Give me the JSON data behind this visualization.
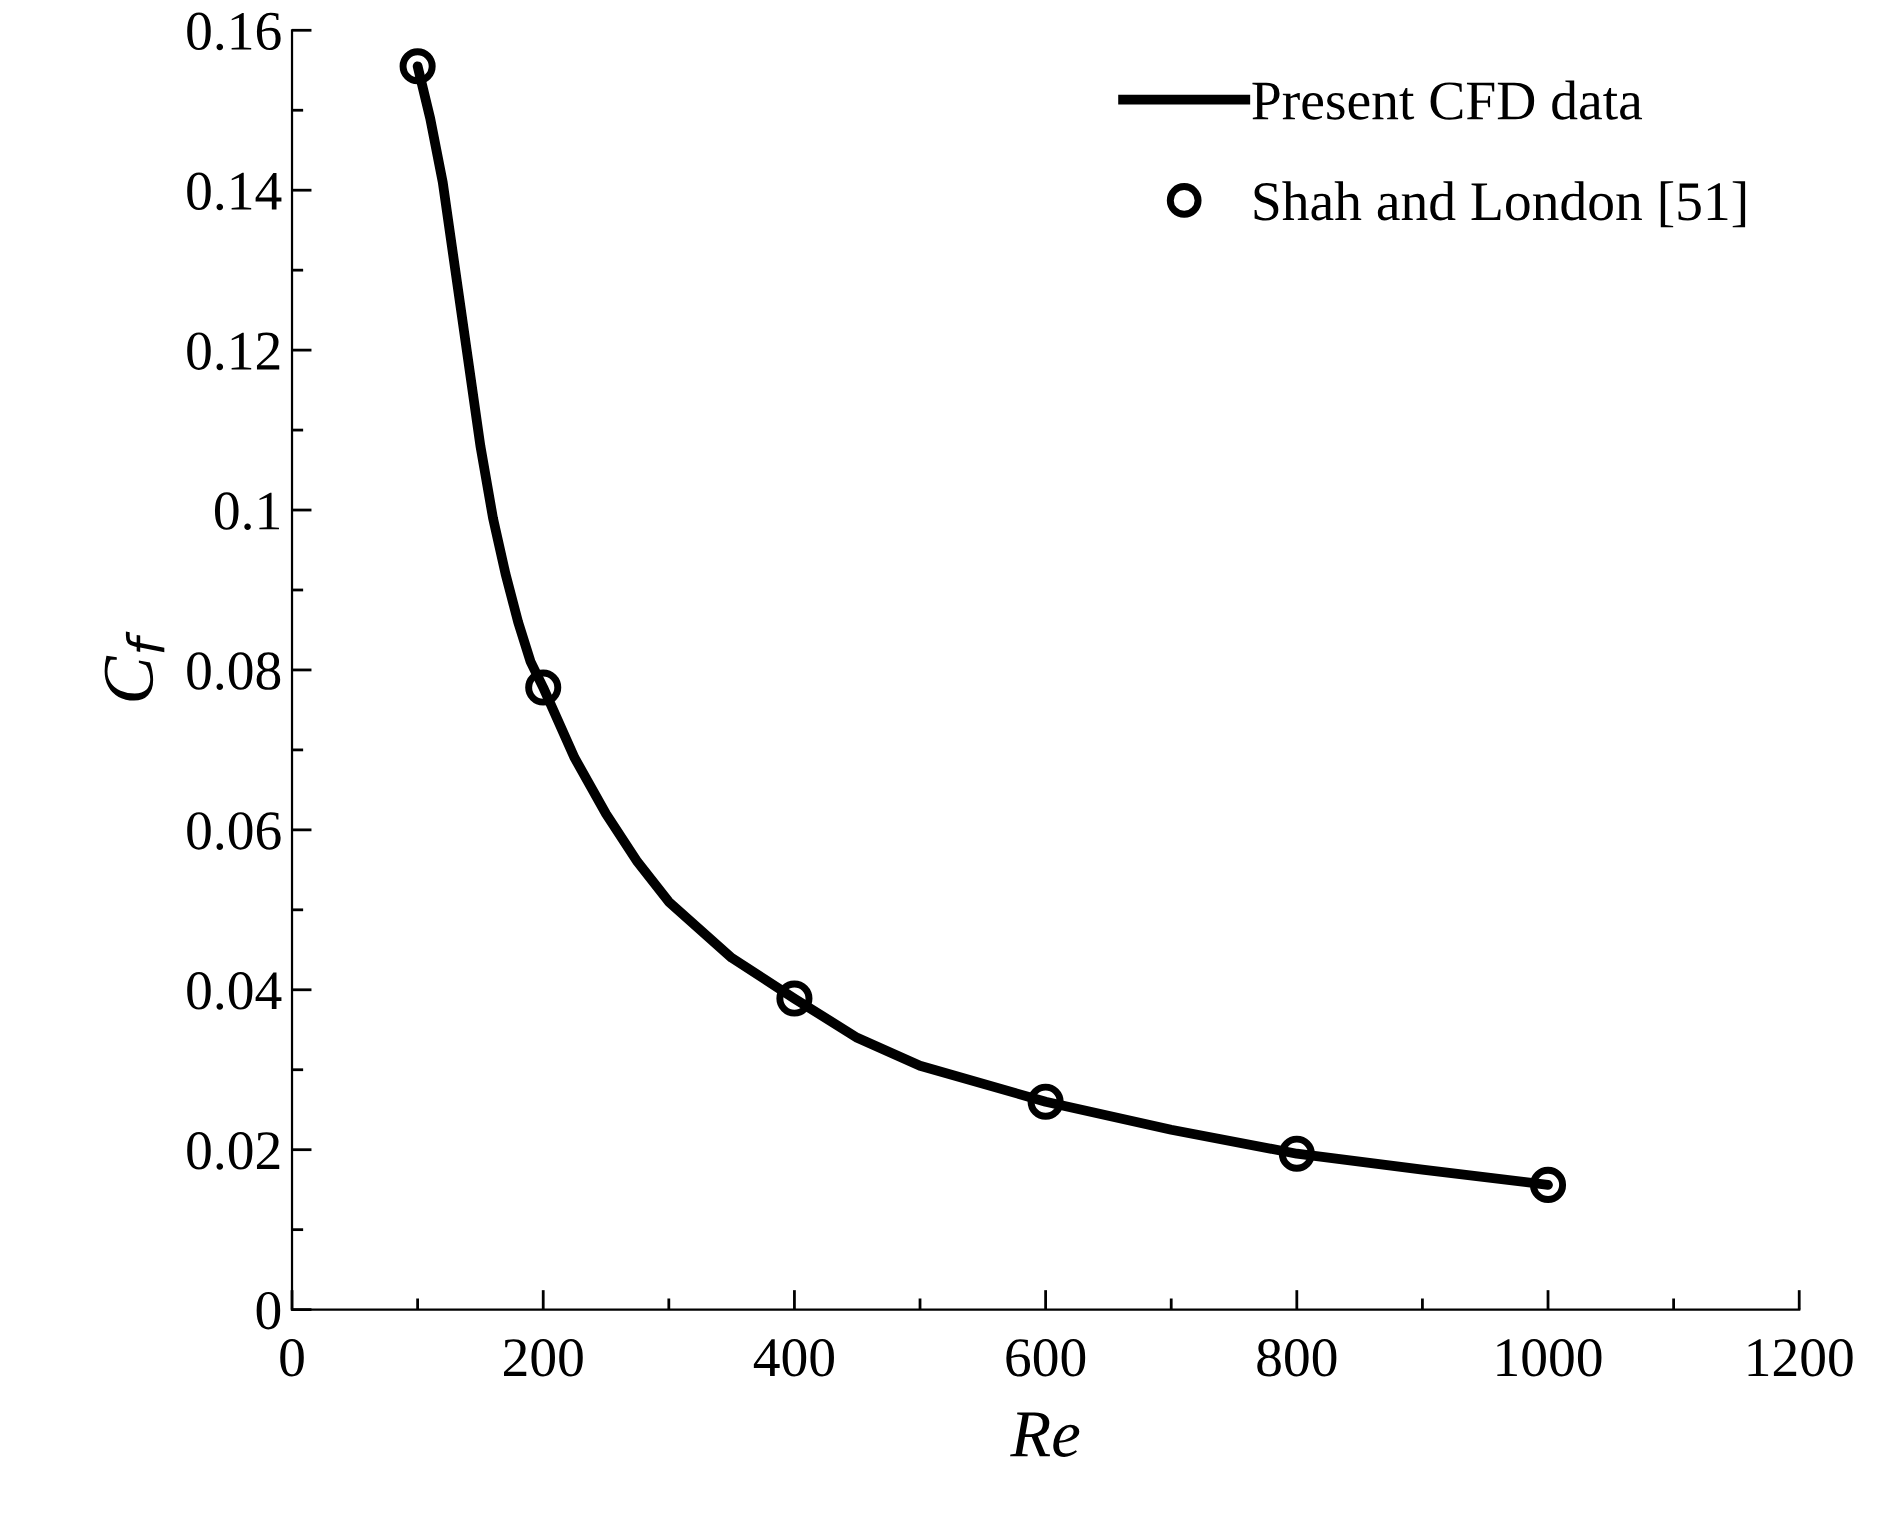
{
  "chart_data": {
    "type": "line",
    "xlabel": "Re",
    "ylabel": "C$_{f}$",
    "xlim": [
      0,
      1200
    ],
    "xticks": [
      0,
      200,
      400,
      600,
      800,
      1000,
      1200
    ],
    "ylim": [
      0,
      0.16
    ],
    "yticks": [
      0,
      0.02,
      0.04,
      0.06,
      0.08,
      {
        "value": 0.1,
        "label": "0.1"
      },
      0.12,
      0.14,
      0.16
    ],
    "grid": false,
    "legend": "top right",
    "series": [
      {
        "name": "Present CFD data",
        "color": "#000000",
        "marker": "none",
        "line_style": "solid",
        "x": [
          100,
          110,
          120,
          130,
          140,
          150,
          160,
          170,
          180,
          190,
          200,
          225,
          250,
          275,
          300,
          350,
          400,
          450,
          500,
          600,
          700,
          800,
          900,
          1000
        ],
        "values": [
          0.1555,
          0.149,
          0.141,
          0.13,
          0.119,
          0.108,
          0.099,
          0.092,
          0.086,
          0.081,
          0.0778,
          0.069,
          0.062,
          0.056,
          0.051,
          0.044,
          0.0389,
          0.034,
          0.0305,
          0.026,
          0.0225,
          0.0195,
          0.0175,
          0.0156
        ]
      },
      {
        "name": "Shah and London [51]",
        "type": "scatter",
        "color": "#000000",
        "marker": "circle",
        "x": [
          100,
          200,
          400,
          600,
          800,
          1000
        ],
        "values": [
          0.1555,
          0.0778,
          0.0389,
          0.026,
          0.0195,
          0.0156
        ]
      }
    ]
  }
}
